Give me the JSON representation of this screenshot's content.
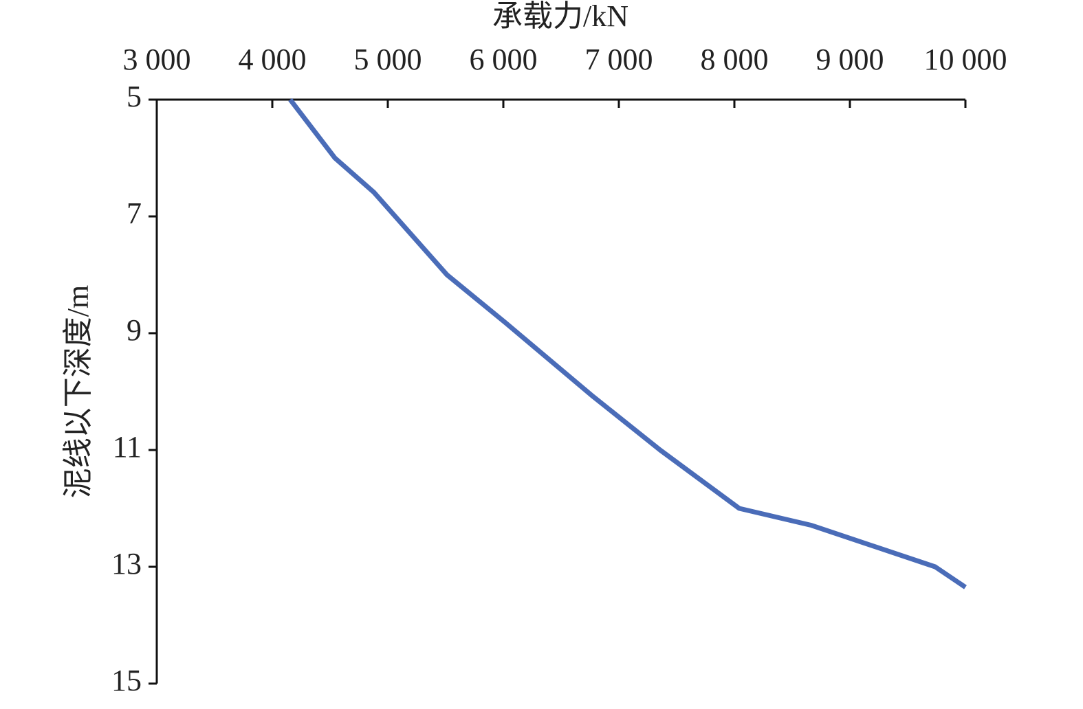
{
  "chart_data": {
    "type": "line",
    "x_label": "承载力/kN",
    "y_label": "泥线以下深度/m",
    "x": [
      4155,
      4542,
      4881,
      5512,
      6018,
      6762,
      7357,
      8042,
      8667,
      9738,
      10000
    ],
    "values": [
      5,
      6,
      6.59,
      8.0,
      8.82,
      10.06,
      11.0,
      12.0,
      12.29,
      13.0,
      13.35
    ],
    "color": "#4a6cb8",
    "xlim": [
      3000,
      10000
    ],
    "xticks": [
      {
        "value": 3000,
        "label": "3 000"
      },
      {
        "value": 4000,
        "label": "4 000"
      },
      {
        "value": 5000,
        "label": "5 000"
      },
      {
        "value": 6000,
        "label": "6 000"
      },
      {
        "value": 7000,
        "label": "7 000"
      },
      {
        "value": 8000,
        "label": "8 000"
      },
      {
        "value": 9000,
        "label": "9 000"
      },
      {
        "value": 10000,
        "label": "10 000"
      }
    ],
    "ylim": [
      5,
      15
    ],
    "yticks": [
      5,
      7,
      9,
      11,
      13,
      15
    ],
    "y_reversed": true,
    "x_axis_position": "top"
  }
}
